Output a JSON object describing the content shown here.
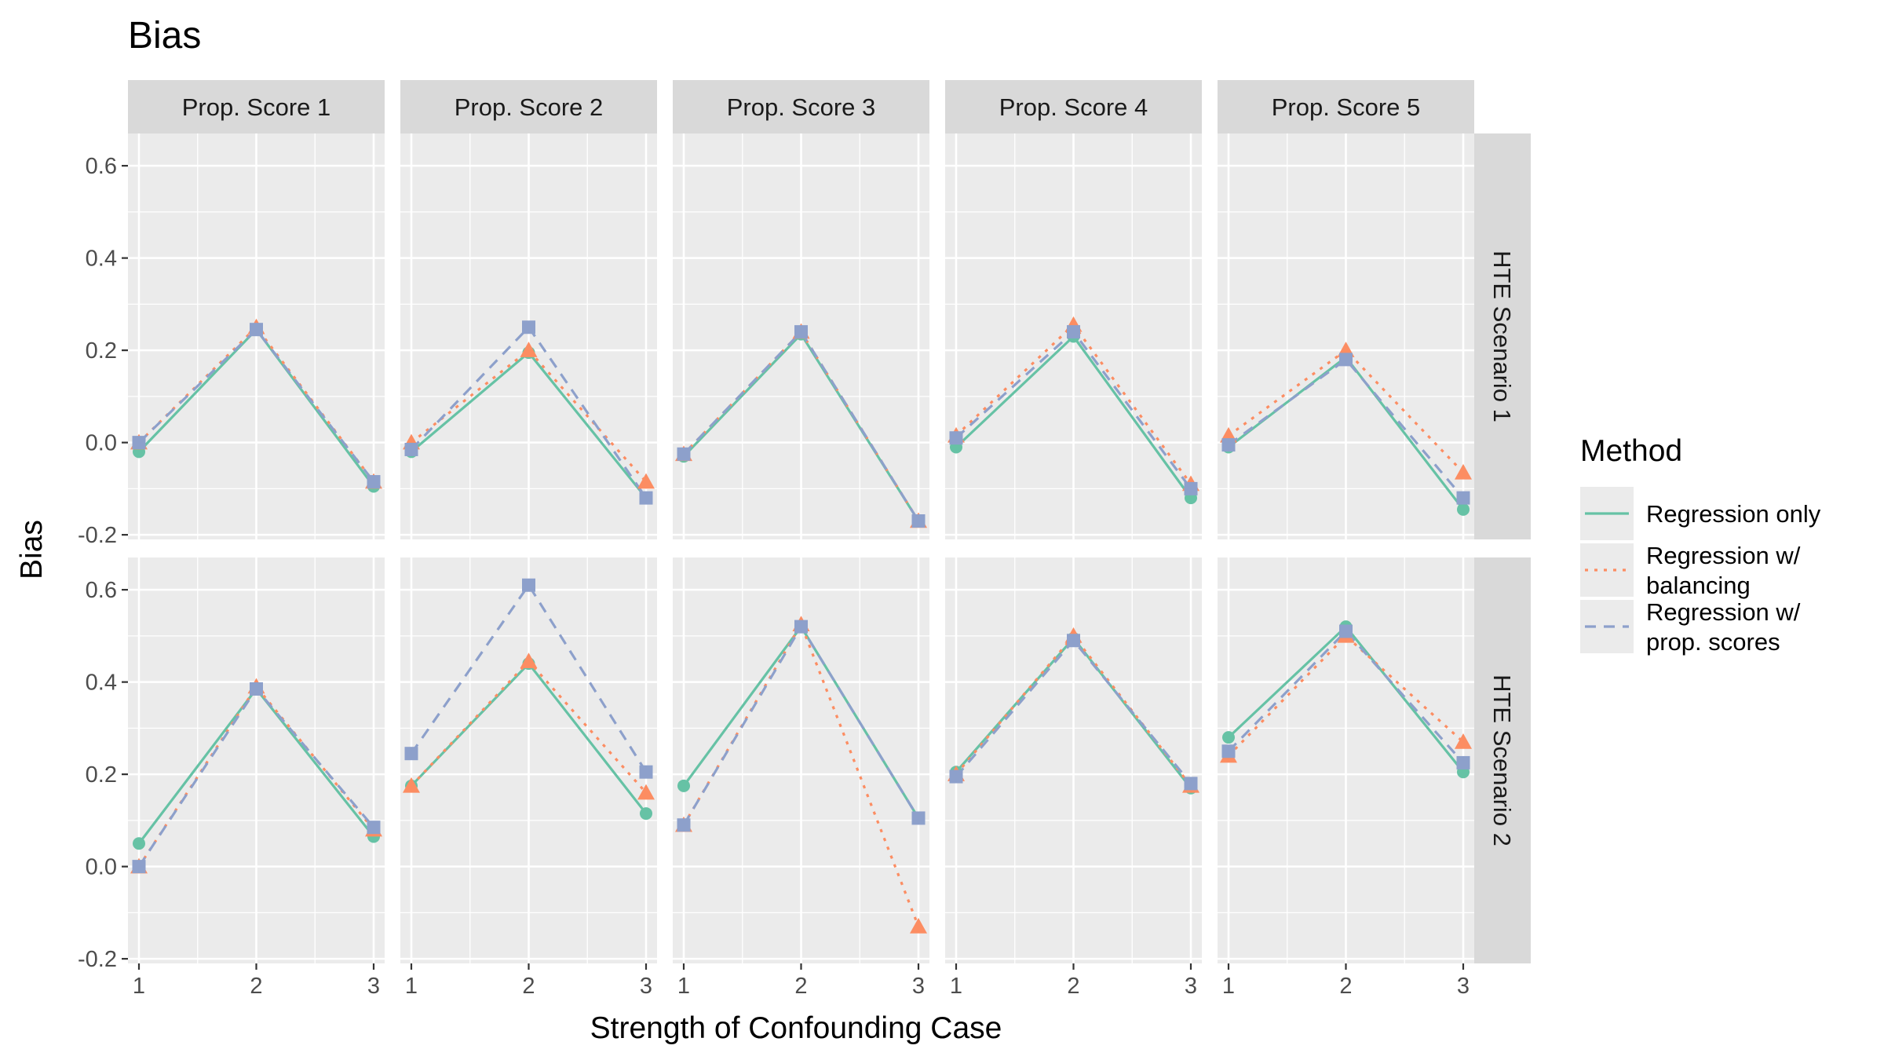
{
  "title": "Bias",
  "chart_data": {
    "type": "line",
    "title": "Bias",
    "xlabel": "Strength of Confounding Case",
    "ylabel": "Bias",
    "x": [
      1,
      2,
      3
    ],
    "x_tick_labels": [
      "1",
      "2",
      "3"
    ],
    "ylim": [
      -0.21,
      0.67
    ],
    "y_ticks": [
      -0.2,
      0.0,
      0.2,
      0.4,
      0.6
    ],
    "y_tick_labels": [
      "-0.2",
      "0.0",
      "0.2",
      "0.4",
      "0.6"
    ],
    "grid": true,
    "facet_columns": [
      "Prop. Score 1",
      "Prop. Score 2",
      "Prop. Score 3",
      "Prop. Score 4",
      "Prop. Score 5"
    ],
    "facet_rows": [
      "HTE Scenario 1",
      "HTE Scenario 2"
    ],
    "legend": {
      "title": "Method",
      "placement": "right",
      "entries": [
        {
          "key": "reg",
          "lines": [
            "Regression only"
          ],
          "color": "#66C2A5",
          "dash": "solid",
          "marker": "circle"
        },
        {
          "key": "bal",
          "lines": [
            "Regression w/",
            "balancing"
          ],
          "color": "#FC8D62",
          "dash": "dotted",
          "marker": "triangle"
        },
        {
          "key": "ps",
          "lines": [
            "Regression w/",
            "prop. scores"
          ],
          "color": "#8DA0CB",
          "dash": "dashed",
          "marker": "square"
        }
      ]
    },
    "panels": [
      {
        "row": "HTE Scenario 1",
        "col": "Prop. Score 1",
        "series": [
          {
            "name": "Regression only",
            "values": [
              -0.02,
              0.245,
              -0.095
            ]
          },
          {
            "name": "Regression w/ balancing",
            "values": [
              0.0,
              0.25,
              -0.085
            ]
          },
          {
            "name": "Regression w/ prop. scores",
            "values": [
              0.0,
              0.245,
              -0.085
            ]
          }
        ]
      },
      {
        "row": "HTE Scenario 1",
        "col": "Prop. Score 2",
        "series": [
          {
            "name": "Regression only",
            "values": [
              -0.02,
              0.195,
              -0.12
            ]
          },
          {
            "name": "Regression w/ balancing",
            "values": [
              0.0,
              0.2,
              -0.085
            ]
          },
          {
            "name": "Regression w/ prop. scores",
            "values": [
              -0.015,
              0.25,
              -0.12
            ]
          }
        ]
      },
      {
        "row": "HTE Scenario 1",
        "col": "Prop. Score 3",
        "series": [
          {
            "name": "Regression only",
            "values": [
              -0.03,
              0.235,
              -0.17
            ]
          },
          {
            "name": "Regression w/ balancing",
            "values": [
              -0.025,
              0.24,
              -0.17
            ]
          },
          {
            "name": "Regression w/ prop. scores",
            "values": [
              -0.025,
              0.24,
              -0.17
            ]
          }
        ]
      },
      {
        "row": "HTE Scenario 1",
        "col": "Prop. Score 4",
        "series": [
          {
            "name": "Regression only",
            "values": [
              -0.01,
              0.23,
              -0.12
            ]
          },
          {
            "name": "Regression w/ balancing",
            "values": [
              0.015,
              0.255,
              -0.09
            ]
          },
          {
            "name": "Regression w/ prop. scores",
            "values": [
              0.01,
              0.24,
              -0.1
            ]
          }
        ]
      },
      {
        "row": "HTE Scenario 1",
        "col": "Prop. Score 5",
        "series": [
          {
            "name": "Regression only",
            "values": [
              -0.01,
              0.185,
              -0.145
            ]
          },
          {
            "name": "Regression w/ balancing",
            "values": [
              0.015,
              0.2,
              -0.065
            ]
          },
          {
            "name": "Regression w/ prop. scores",
            "values": [
              -0.005,
              0.18,
              -0.12
            ]
          }
        ]
      },
      {
        "row": "HTE Scenario 2",
        "col": "Prop. Score 1",
        "series": [
          {
            "name": "Regression only",
            "values": [
              0.05,
              0.385,
              0.065
            ]
          },
          {
            "name": "Regression w/ balancing",
            "values": [
              0.0,
              0.39,
              0.08
            ]
          },
          {
            "name": "Regression w/ prop. scores",
            "values": [
              0.0,
              0.385,
              0.085
            ]
          }
        ]
      },
      {
        "row": "HTE Scenario 2",
        "col": "Prop. Score 2",
        "series": [
          {
            "name": "Regression only",
            "values": [
              0.175,
              0.44,
              0.115
            ]
          },
          {
            "name": "Regression w/ balancing",
            "values": [
              0.175,
              0.445,
              0.16
            ]
          },
          {
            "name": "Regression w/ prop. scores",
            "values": [
              0.245,
              0.61,
              0.205
            ]
          }
        ]
      },
      {
        "row": "HTE Scenario 2",
        "col": "Prop. Score 3",
        "series": [
          {
            "name": "Regression only",
            "values": [
              0.175,
              0.52,
              0.105
            ]
          },
          {
            "name": "Regression w/ balancing",
            "values": [
              0.09,
              0.525,
              -0.13
            ]
          },
          {
            "name": "Regression w/ prop. scores",
            "values": [
              0.09,
              0.52,
              0.105
            ]
          }
        ]
      },
      {
        "row": "HTE Scenario 2",
        "col": "Prop. Score 4",
        "series": [
          {
            "name": "Regression only",
            "values": [
              0.205,
              0.495,
              0.17
            ]
          },
          {
            "name": "Regression w/ balancing",
            "values": [
              0.2,
              0.5,
              0.175
            ]
          },
          {
            "name": "Regression w/ prop. scores",
            "values": [
              0.195,
              0.49,
              0.18
            ]
          }
        ]
      },
      {
        "row": "HTE Scenario 2",
        "col": "Prop. Score 5",
        "series": [
          {
            "name": "Regression only",
            "values": [
              0.28,
              0.52,
              0.205
            ]
          },
          {
            "name": "Regression w/ balancing",
            "values": [
              0.24,
              0.5,
              0.27
            ]
          },
          {
            "name": "Regression w/ prop. scores",
            "values": [
              0.25,
              0.51,
              0.225
            ]
          }
        ]
      }
    ]
  }
}
